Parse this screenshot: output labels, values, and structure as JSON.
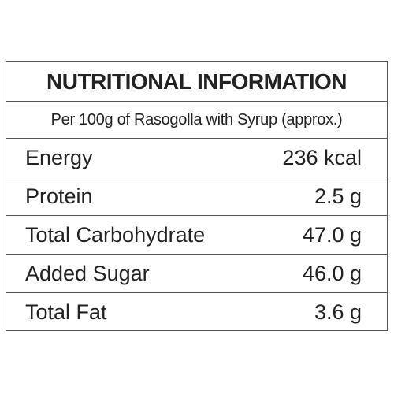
{
  "table": {
    "title": "NUTRITIONAL INFORMATION",
    "subtitle": "Per 100g of Rasogolla with Syrup (approx.)",
    "rows": [
      [
        "Energy",
        "236 kcal"
      ],
      [
        "Protein",
        "2.5 g"
      ],
      [
        "Total Carbohydrate",
        "47.0 g"
      ],
      [
        "Added Sugar",
        "46.0 g"
      ],
      [
        "Total Fat",
        "3.6 g"
      ]
    ]
  }
}
